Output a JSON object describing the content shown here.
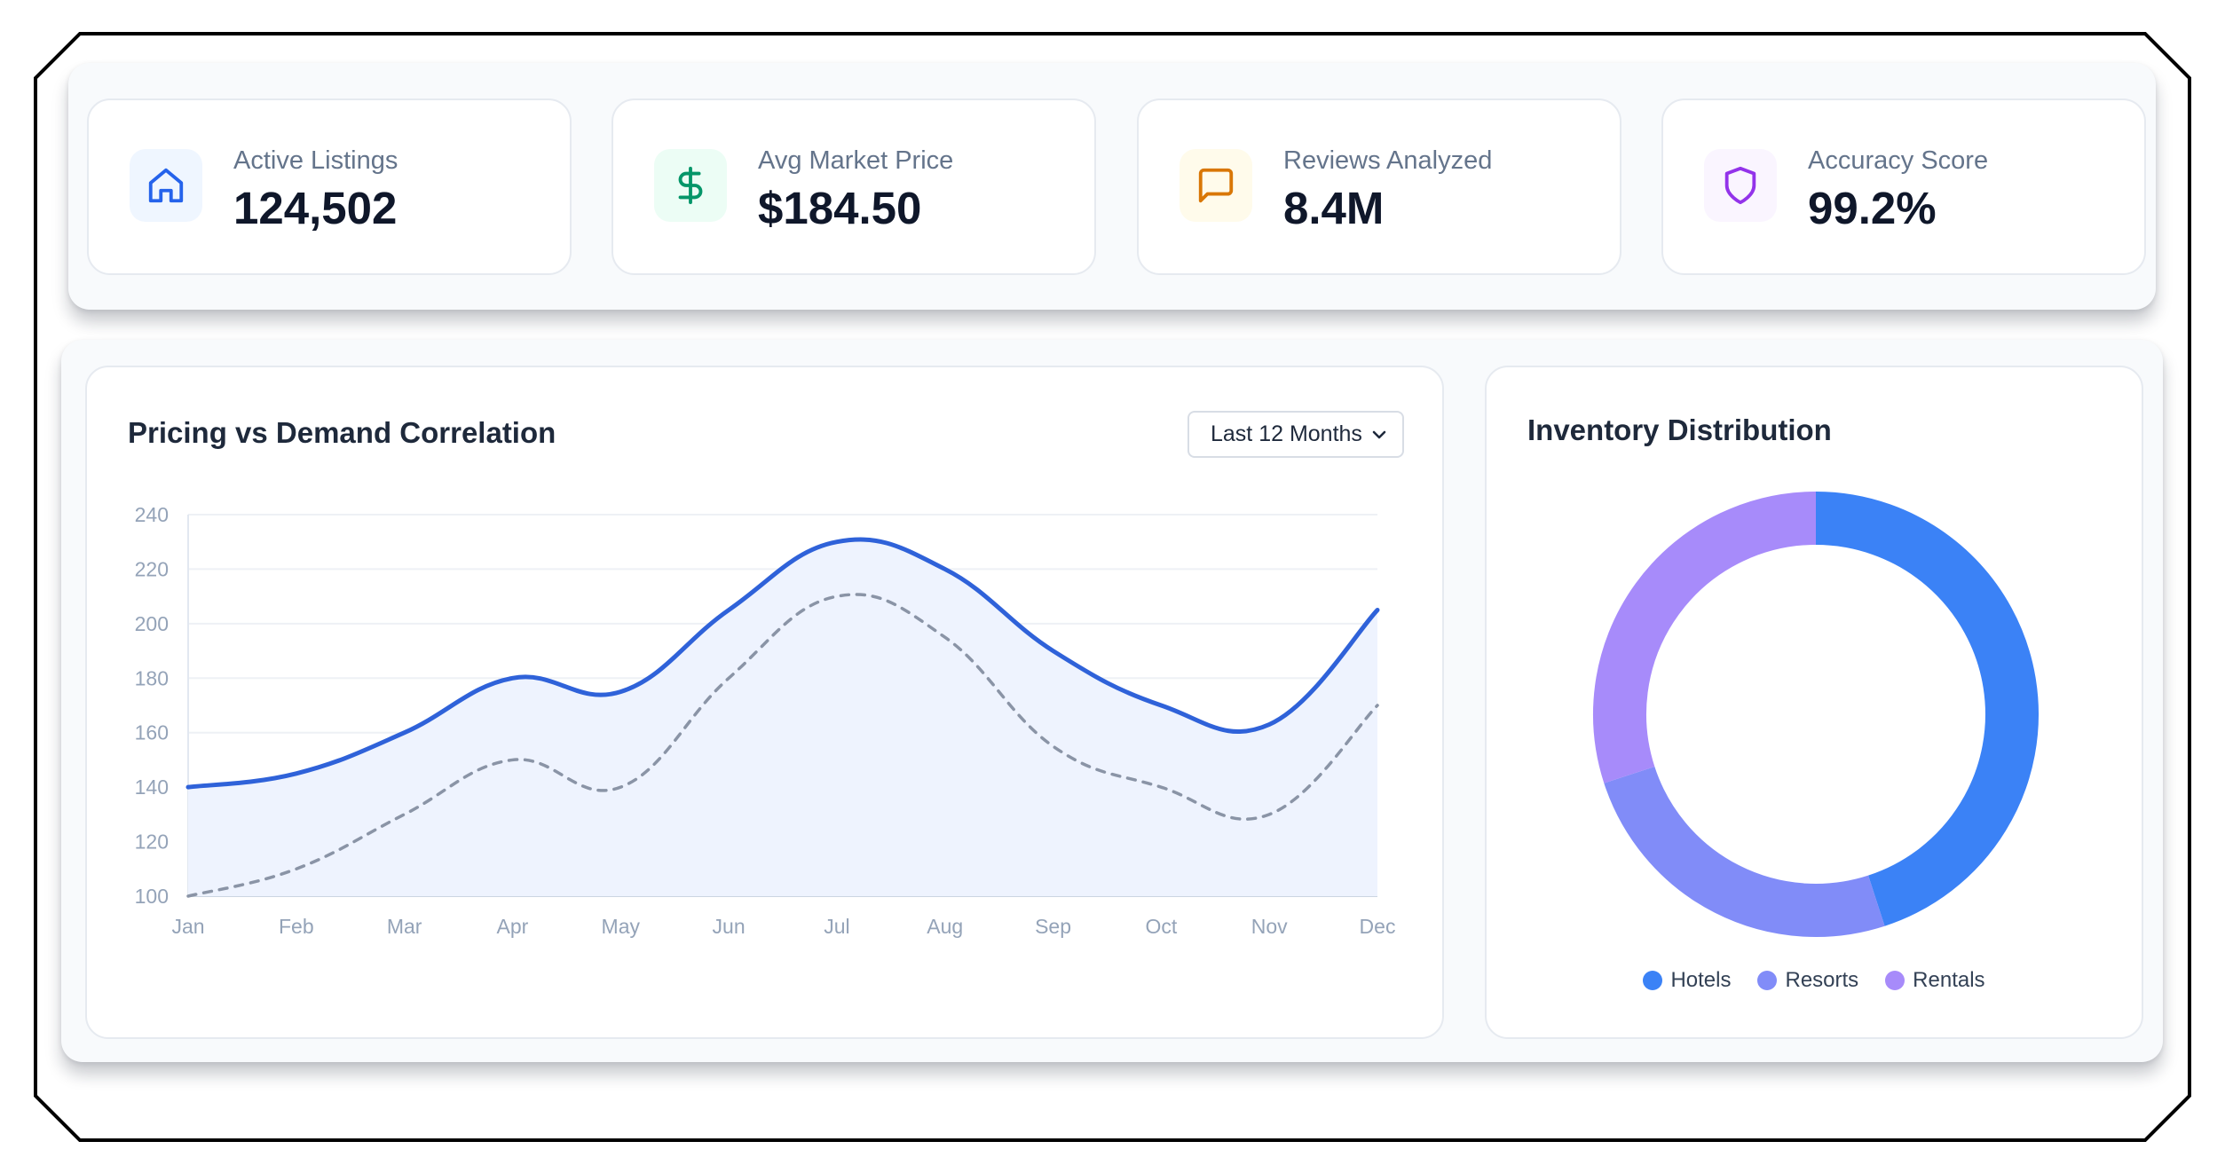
{
  "stats": [
    {
      "label": "Active Listings",
      "value": "124,502",
      "icon": "home-icon",
      "icon_color": "#2563eb",
      "icon_bg": "#eff6ff"
    },
    {
      "label": "Avg Market Price",
      "value": "$184.50",
      "icon": "dollar-icon",
      "icon_color": "#059669",
      "icon_bg": "#ecfdf5"
    },
    {
      "label": "Reviews Analyzed",
      "value": "8.4M",
      "icon": "message-icon",
      "icon_color": "#d97706",
      "icon_bg": "#fffbeb"
    },
    {
      "label": "Accuracy Score",
      "value": "99.2%",
      "icon": "shield-icon",
      "icon_color": "#9333ea",
      "icon_bg": "#faf5ff"
    }
  ],
  "line_card": {
    "title": "Pricing vs Demand Correlation",
    "range_select": {
      "selected": "Last 12 Months"
    }
  },
  "donut_card": {
    "title": "Inventory Distribution"
  },
  "chart_data": [
    {
      "type": "line",
      "title": "Pricing vs Demand Correlation",
      "categories": [
        "Jan",
        "Feb",
        "Mar",
        "Apr",
        "May",
        "Jun",
        "Jul",
        "Aug",
        "Sep",
        "Oct",
        "Nov",
        "Dec"
      ],
      "series": [
        {
          "values": [
            140,
            145,
            160,
            180,
            175,
            205,
            230,
            220,
            190,
            170,
            163,
            205
          ],
          "color": "#2f62d9",
          "style": "solid",
          "fill": "#eef3fe"
        },
        {
          "values": [
            100,
            110,
            130,
            150,
            140,
            180,
            210,
            195,
            155,
            140,
            130,
            170
          ],
          "color": "#8a94a6",
          "style": "dashed"
        }
      ],
      "ylim": [
        100,
        240
      ],
      "yticks": [
        100,
        120,
        140,
        160,
        180,
        200,
        220,
        240
      ],
      "grid": true
    },
    {
      "type": "pie",
      "style": "donut",
      "title": "Inventory Distribution",
      "labels": [
        "Hotels",
        "Resorts",
        "Rentals"
      ],
      "values": [
        45,
        25,
        30
      ],
      "colors": [
        "#3b82f6",
        "#818cf8",
        "#a78bfa"
      ],
      "legend": "bottom"
    }
  ]
}
